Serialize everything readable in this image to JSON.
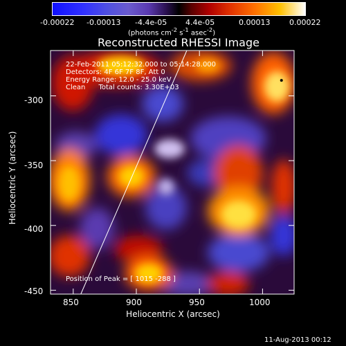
{
  "colorbar": {
    "ticks": [
      "-0.00022",
      "-0.00013",
      "-4.4e-05",
      "4.4e-05",
      "0.00013",
      "0.00022"
    ],
    "units_html": "(photons cm<sup>-2</sup> s<sup>-1</sup> asec<sup>-2</sup>)"
  },
  "title": "Reconstructed RHESSI Image",
  "info": {
    "line1": "22-Feb-2011 05:12:32.000 to 05:14:28.000",
    "line2": "Detectors: 4F 6F 7F 8F, Att 0",
    "line3": "Energy Range: 12.0 - 25.0 keV",
    "line4": "Clean      Total counts: 3.30E+03",
    "peak": "Position of Peak = [ 1015 -288 ]"
  },
  "axes": {
    "xlabel": "Heliocentric X (arcsec)",
    "ylabel": "Heliocentric Y (arcsec)",
    "xticks": [
      "850",
      "900",
      "950",
      "1000"
    ],
    "yticks": [
      "-300",
      "-350",
      "-400",
      "-450"
    ],
    "xrange": [
      832,
      1025
    ],
    "yrange": [
      -453,
      -265
    ]
  },
  "limb": {
    "line": [
      [
        856,
        -453
      ],
      [
        940,
        -265
      ]
    ]
  },
  "peak_marker": [
    1015,
    -288
  ],
  "footer": "11-Aug-2013 00:12",
  "colors": {
    "low": "#0000ff",
    "mid": "#000000",
    "high": "#ffffff"
  }
}
